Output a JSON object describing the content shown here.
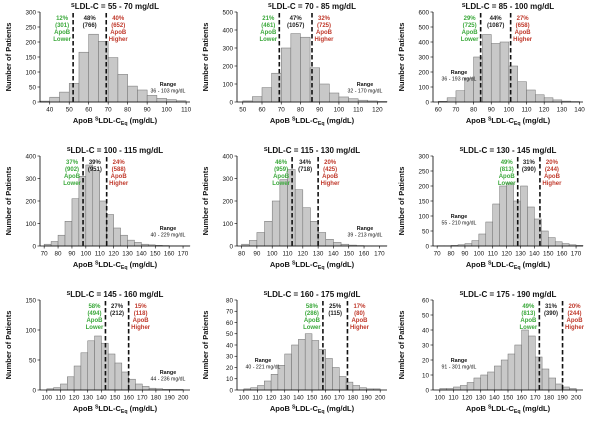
{
  "chart_data": [
    {
      "type": "bar",
      "title_sup": "S",
      "title": "LDL-C = 55 - 70 mg/dL",
      "xlabel": "ApoB SLDL-C",
      "xlabel_sub": "Eq",
      "xlabel_unit": "(mg/dL)",
      "ylabel": "Number of Patients",
      "ylim": [
        0,
        300
      ],
      "yticks": [
        0,
        50,
        100,
        150,
        200,
        250,
        300
      ],
      "xlim": [
        35,
        112
      ],
      "xticks": [
        40,
        50,
        60,
        70,
        80,
        90,
        100,
        110
      ],
      "bin_start": 35,
      "bin_width": 5,
      "values": [
        3,
        16,
        33,
        62,
        166,
        226,
        202,
        148,
        92,
        53,
        40,
        22,
        12,
        8,
        4
      ],
      "cut_lo": 52,
      "cut_hi": 69,
      "lower_pct": "12%",
      "lower_n": "(301)",
      "lower_label1": "ApoB",
      "lower_label2": "Lower",
      "mid_pct": "48%",
      "mid_n": "(766)",
      "higher_pct": "40%",
      "higher_n": "(652)",
      "higher_label1": "ApoB",
      "higher_label2": "Higher",
      "range_label": "Range",
      "range_value": "36 - 103 mg/dL",
      "range_side": "right"
    },
    {
      "type": "bar",
      "title_sup": "S",
      "title": "LDL-C = 70 - 85 mg/dL",
      "xlabel": "ApoB SLDL-C",
      "xlabel_sub": "Eq",
      "xlabel_unit": "(mg/dL)",
      "ylabel": "Number of Patients",
      "ylim": [
        0,
        500
      ],
      "yticks": [
        0,
        100,
        200,
        300,
        400,
        500
      ],
      "xlim": [
        47,
        125
      ],
      "xticks": [
        50,
        60,
        70,
        80,
        90,
        100,
        110,
        120
      ],
      "bin_start": 50,
      "bin_width": 5,
      "values": [
        6,
        30,
        80,
        160,
        300,
        380,
        360,
        190,
        100,
        50,
        28,
        18,
        10,
        6,
        3
      ],
      "cut_lo": 69,
      "cut_hi": 86,
      "lower_pct": "21%",
      "lower_n": "(461)",
      "lower_label1": "ApoB",
      "lower_label2": "Lower",
      "mid_pct": "47%",
      "mid_n": "(1057)",
      "higher_pct": "32%",
      "higher_n": "(725)",
      "higher_label1": "ApoB",
      "higher_label2": "Higher",
      "range_label": "Range",
      "range_value": "32 - 170 mg/dL",
      "range_side": "right"
    },
    {
      "type": "bar",
      "title_sup": "S",
      "title": "LDL-C = 85 - 100 mg/dL",
      "xlabel": "ApoB SLDL-C",
      "xlabel_sub": "Eq",
      "xlabel_unit": "(mg/dL)",
      "ylabel": "Number of Patients",
      "ylim": [
        0,
        600
      ],
      "yticks": [
        0,
        100,
        200,
        300,
        400,
        500,
        600
      ],
      "xlim": [
        57,
        142
      ],
      "xticks": [
        60,
        70,
        80,
        90,
        100,
        110,
        120,
        130,
        140
      ],
      "bin_start": 60,
      "bin_width": 5,
      "values": [
        5,
        28,
        75,
        160,
        300,
        450,
        390,
        400,
        240,
        135,
        80,
        48,
        28,
        14,
        6,
        3
      ],
      "cut_lo": 84,
      "cut_hi": 101,
      "lower_pct": "29%",
      "lower_n": "(725)",
      "lower_label1": "ApoB",
      "lower_label2": "Lower",
      "mid_pct": "44%",
      "mid_n": "(1087)",
      "higher_pct": "27%",
      "higher_n": "(658)",
      "higher_label1": "ApoB",
      "higher_label2": "Higher",
      "range_label": "Range",
      "range_value": "36 - 193 mg/dL",
      "range_side": "left"
    },
    {
      "type": "bar",
      "title_sup": "S",
      "title": "LDL-C = 100 - 115 mg/dL",
      "xlabel": "ApoB SLDL-C",
      "xlabel_sub": "Eq",
      "xlabel_unit": "(mg/dL)",
      "ylabel": "Number of Patients",
      "ylim": [
        0,
        400
      ],
      "yticks": [
        0,
        100,
        200,
        300,
        400
      ],
      "xlim": [
        67,
        175
      ],
      "xticks": [
        70,
        80,
        90,
        100,
        110,
        120,
        130,
        140,
        150,
        160,
        170
      ],
      "bin_start": 70,
      "bin_width": 5,
      "values": [
        8,
        20,
        48,
        110,
        210,
        310,
        360,
        335,
        200,
        140,
        80,
        48,
        26,
        16,
        8,
        5,
        3,
        2,
        1,
        1,
        1
      ],
      "cut_lo": 98,
      "cut_hi": 115,
      "lower_pct": "37%",
      "lower_n": "(902)",
      "lower_label1": "ApoB",
      "lower_label2": "Lower",
      "mid_pct": "39%",
      "mid_n": "(951)",
      "higher_pct": "24%",
      "higher_n": "(588)",
      "higher_label1": "ApoB",
      "higher_label2": "Higher",
      "range_label": "Range",
      "range_value": "40 - 229 mg/dL",
      "range_side": "right"
    },
    {
      "type": "bar",
      "title_sup": "S",
      "title": "LDL-C = 115 - 130 mg/dL",
      "xlabel": "ApoB SLDL-C",
      "xlabel_sub": "Eq",
      "xlabel_unit": "(mg/dL)",
      "ylabel": "Number of Patients",
      "ylim": [
        0,
        400
      ],
      "yticks": [
        0,
        100,
        200,
        300,
        400
      ],
      "xlim": [
        77,
        175
      ],
      "xticks": [
        80,
        90,
        100,
        110,
        120,
        130,
        140,
        150,
        160,
        170
      ],
      "bin_start": 80,
      "bin_width": 5,
      "values": [
        8,
        25,
        60,
        110,
        200,
        295,
        340,
        250,
        170,
        110,
        60,
        30,
        16,
        8,
        4,
        2,
        1,
        1,
        1
      ],
      "cut_lo": 113,
      "cut_hi": 130,
      "lower_pct": "46%",
      "lower_n": "(959)",
      "lower_label1": "ApoB",
      "lower_label2": "Lower",
      "mid_pct": "34%",
      "mid_n": "(718)",
      "higher_pct": "20%",
      "higher_n": "(425)",
      "higher_label1": "ApoB",
      "higher_label2": "Higher",
      "range_label": "Range",
      "range_value": "39 - 213 mg/dL",
      "range_side": "right"
    },
    {
      "type": "bar",
      "title_sup": "S",
      "title": "LDL-C = 130 - 145 mg/dL",
      "xlabel": "ApoB SLDL-C",
      "xlabel_sub": "Eq",
      "xlabel_unit": "(mg/dL)",
      "ylabel": "Number of Patients",
      "ylim": [
        0,
        300
      ],
      "yticks": [
        0,
        50,
        100,
        150,
        200,
        250,
        300
      ],
      "xlim": [
        67,
        175
      ],
      "xticks": [
        70,
        80,
        90,
        100,
        110,
        120,
        130,
        140,
        150,
        160,
        170
      ],
      "bin_start": 70,
      "bin_width": 5,
      "values": [
        1,
        1,
        2,
        4,
        8,
        18,
        40,
        80,
        140,
        200,
        210,
        150,
        200,
        130,
        90,
        50,
        28,
        14,
        8,
        4,
        2
      ],
      "cut_lo": 128,
      "cut_hi": 144,
      "lower_pct": "49%",
      "lower_n": "(813)",
      "lower_label1": "ApoB",
      "lower_label2": "Lower",
      "mid_pct": "31%",
      "mid_n": "(390)",
      "higher_pct": "20%",
      "higher_n": "(244)",
      "higher_label1": "ApoB",
      "higher_label2": "Higher",
      "range_label": "Range",
      "range_value": "55 - 210 mg/dL",
      "range_side": "left"
    },
    {
      "type": "bar",
      "title_sup": "S",
      "title": "LDL-C = 145 - 160 mg/dL",
      "xlabel": "ApoB SLDL-C",
      "xlabel_sub": "Eq",
      "xlabel_unit": "(mg/dL)",
      "ylabel": "Number of Patients",
      "ylim": [
        0,
        150
      ],
      "yticks": [
        0,
        50,
        100,
        150
      ],
      "xlim": [
        95,
        205
      ],
      "xticks": [
        100,
        110,
        120,
        130,
        140,
        150,
        160,
        170,
        180,
        190,
        200
      ],
      "bin_start": 100,
      "bin_width": 5,
      "values": [
        2,
        4,
        10,
        22,
        40,
        62,
        82,
        90,
        78,
        60,
        45,
        30,
        18,
        10,
        6,
        3,
        2,
        1,
        1,
        1
      ],
      "cut_lo": 143,
      "cut_hi": 160,
      "lower_pct": "58%",
      "lower_n": "(494)",
      "lower_label1": "ApoB",
      "lower_label2": "Lower",
      "mid_pct": "27%",
      "mid_n": "(212)",
      "higher_pct": "15%",
      "higher_n": "(118)",
      "higher_label1": "ApoB",
      "higher_label2": "Higher",
      "range_label": "Range",
      "range_value": "44 - 236 mg/dL",
      "range_side": "right"
    },
    {
      "type": "bar",
      "title_sup": "S",
      "title": "LDL-C = 160 - 175 mg/dL",
      "xlabel": "ApoB SLDL-C",
      "xlabel_sub": "Eq",
      "xlabel_unit": "(mg/dL)",
      "ylabel": "Number of Patients",
      "ylim": [
        0,
        80
      ],
      "yticks": [
        0,
        10,
        20,
        30,
        40,
        50,
        60,
        70,
        80
      ],
      "xlim": [
        95,
        205
      ],
      "xticks": [
        100,
        110,
        120,
        130,
        140,
        150,
        160,
        170,
        180,
        190,
        200
      ],
      "bin_start": 100,
      "bin_width": 5,
      "values": [
        1,
        2,
        4,
        8,
        14,
        22,
        32,
        40,
        45,
        50,
        44,
        36,
        28,
        20,
        12,
        7,
        4,
        2,
        1,
        1
      ],
      "cut_lo": 158,
      "cut_hi": 176,
      "lower_pct": "58%",
      "lower_n": "(286)",
      "lower_label1": "ApoB",
      "lower_label2": "Lower",
      "mid_pct": "25%",
      "mid_n": "(115)",
      "higher_pct": "17%",
      "higher_n": "(80)",
      "higher_label1": "ApoB",
      "higher_label2": "Higher",
      "range_label": "Range",
      "range_value": "40 - 221 mg/dL",
      "range_side": "left"
    },
    {
      "type": "bar",
      "title_sup": "S",
      "title": "LDL-C = 175 - 190 mg/dL",
      "xlabel": "ApoB SLDL-C",
      "xlabel_sub": "Eq",
      "xlabel_unit": "(mg/dL)",
      "ylabel": "Number of Patients",
      "ylim": [
        0,
        60
      ],
      "yticks": [
        0,
        10,
        20,
        30,
        40,
        50,
        60
      ],
      "xlim": [
        95,
        205
      ],
      "xticks": [
        100,
        110,
        120,
        130,
        140,
        150,
        160,
        170,
        180,
        190,
        200
      ],
      "bin_start": 100,
      "bin_width": 5,
      "values": [
        1,
        1,
        2,
        3,
        5,
        8,
        10,
        12,
        16,
        20,
        24,
        30,
        40,
        36,
        22,
        14,
        8,
        4,
        2,
        1
      ],
      "cut_lo": 173,
      "cut_hi": 190,
      "lower_pct": "49%",
      "lower_n": "(813)",
      "lower_label1": "ApoB",
      "lower_label2": "Lower",
      "mid_pct": "31%",
      "mid_n": "(390)",
      "higher_pct": "20%",
      "higher_n": "(244)",
      "higher_label1": "ApoB",
      "higher_label2": "Higher",
      "range_label": "Range",
      "range_value": "91 - 301 mg/dL",
      "range_side": "left"
    }
  ],
  "colors": {
    "bar_fill": "#c8c8c8",
    "bar_stroke": "#6e6e6e",
    "lower_text": "#3aa83a",
    "higher_text": "#c0392b",
    "mid_text": "#222222",
    "cut_line": "#111111"
  }
}
